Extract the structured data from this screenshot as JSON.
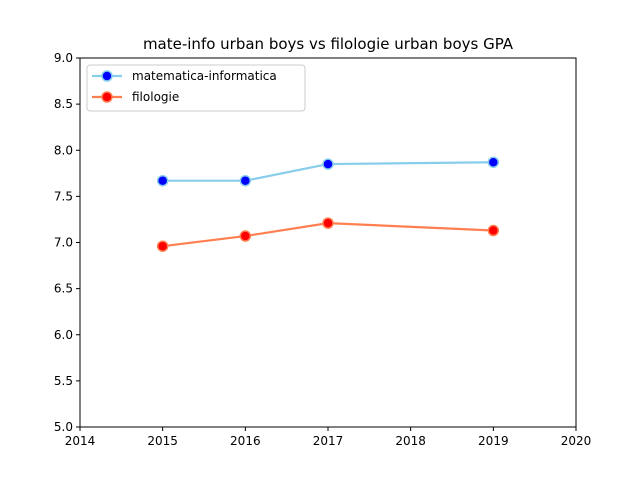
{
  "chart_data": {
    "type": "line",
    "title": "mate-info urban boys vs filologie urban boys GPA",
    "xlabel": "",
    "ylabel": "",
    "xlim": [
      2014,
      2020
    ],
    "ylim": [
      5.0,
      9.0
    ],
    "x_ticks": [
      "2014",
      "2015",
      "2016",
      "2017",
      "2018",
      "2019",
      "2020"
    ],
    "y_ticks": [
      "5.0",
      "5.5",
      "6.0",
      "6.5",
      "7.0",
      "7.5",
      "8.0",
      "8.5",
      "9.0"
    ],
    "grid": false,
    "legend_position": "upper-left",
    "series": [
      {
        "name": "matematica-informatica",
        "x": [
          2015,
          2016,
          2017,
          2019
        ],
        "y": [
          7.67,
          7.67,
          7.85,
          7.87
        ],
        "line_color": "#87ceeb",
        "marker_color": "#0000ff"
      },
      {
        "name": "filologie",
        "x": [
          2015,
          2016,
          2017,
          2019
        ],
        "y": [
          6.96,
          7.07,
          7.21,
          7.13
        ],
        "line_color": "#ff7f50",
        "marker_color": "#ff0000"
      }
    ]
  }
}
